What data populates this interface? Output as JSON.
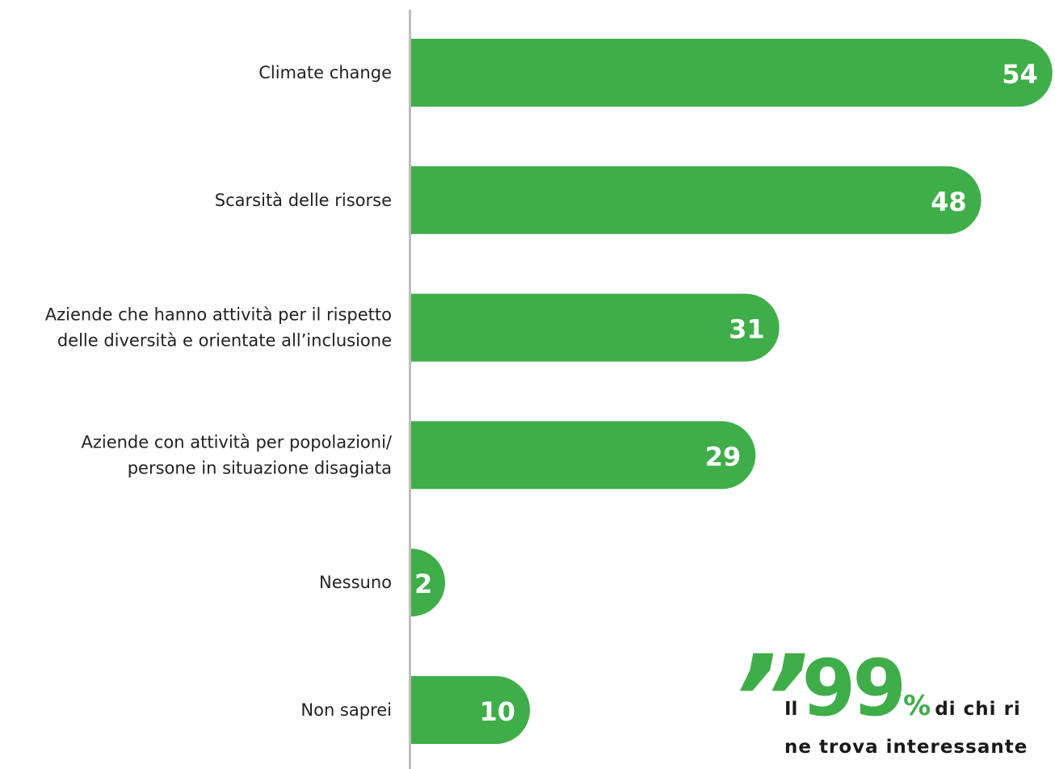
{
  "chart_data": {
    "type": "bar",
    "orientation": "horizontal",
    "categories": [
      [
        "Climate change"
      ],
      [
        "Scarsità delle risorse"
      ],
      [
        "Aziende che hanno attività per il rispetto",
        "delle diversità e orientate all’inclusione"
      ],
      [
        "Aziende con attività per popolazioni/",
        "persone in situazione disagiata"
      ],
      [
        "Nessuno"
      ],
      [
        "Non saprei"
      ]
    ],
    "values": [
      54,
      48,
      31,
      29,
      2,
      10
    ],
    "bar_color": "#3fae49",
    "axis_color": "#bdbdbd",
    "grid": false,
    "legend": "none"
  },
  "callout": {
    "quote_mark": "”",
    "prefix": "Il",
    "big_number": "99",
    "percent": "%",
    "text_line1": "di chi ri",
    "text_line2": "ne trova interessante"
  }
}
